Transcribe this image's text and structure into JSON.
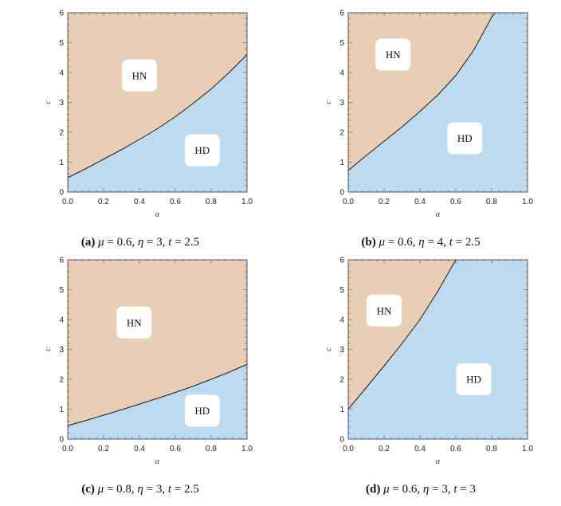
{
  "chart_data": [
    {
      "type": "area",
      "panel_letter": "(a)",
      "caption": {
        "mu": "0.6",
        "eta": "3",
        "t": "2.5"
      },
      "xlabel": "α",
      "ylabel": "c",
      "xlim": [
        0,
        1
      ],
      "ylim": [
        0,
        6
      ],
      "xticks": [
        "0.0",
        "0.2",
        "0.4",
        "0.6",
        "0.8",
        "1.0"
      ],
      "yticks": [
        "0",
        "1",
        "2",
        "3",
        "4",
        "5",
        "6"
      ],
      "boundary": {
        "x": [
          0,
          0.1,
          0.2,
          0.3,
          0.4,
          0.5,
          0.6,
          0.7,
          0.8,
          0.9,
          1.0
        ],
        "y": [
          0.48,
          0.78,
          1.1,
          1.42,
          1.76,
          2.12,
          2.52,
          2.97,
          3.45,
          4.0,
          4.6
        ]
      },
      "regions": [
        {
          "name": "HN",
          "label_x": 0.4,
          "label_y": 3.9
        },
        {
          "name": "HD",
          "label_x": 0.75,
          "label_y": 1.4
        }
      ],
      "colors": {
        "upper": "#e8ceb6",
        "lower": "#bcdaf0",
        "line": "#1a1a1a"
      }
    },
    {
      "type": "area",
      "panel_letter": "(b)",
      "caption": {
        "mu": "0.6",
        "eta": "4",
        "t": "2.5"
      },
      "xlabel": "α",
      "ylabel": "c",
      "xlim": [
        0,
        1
      ],
      "ylim": [
        0,
        6
      ],
      "xticks": [
        "0.0",
        "0.2",
        "0.4",
        "0.6",
        "0.8",
        "1.0"
      ],
      "yticks": [
        "0",
        "1",
        "2",
        "3",
        "4",
        "5",
        "6"
      ],
      "boundary": {
        "x": [
          0,
          0.1,
          0.2,
          0.3,
          0.4,
          0.5,
          0.6,
          0.7,
          0.8,
          0.82
        ],
        "y": [
          0.72,
          1.22,
          1.7,
          2.18,
          2.7,
          3.25,
          3.9,
          4.75,
          5.85,
          6.0
        ]
      },
      "regions": [
        {
          "name": "HN",
          "label_x": 0.25,
          "label_y": 4.6
        },
        {
          "name": "HD",
          "label_x": 0.65,
          "label_y": 1.8
        }
      ],
      "colors": {
        "upper": "#e8ceb6",
        "lower": "#bcdaf0",
        "line": "#1a1a1a"
      }
    },
    {
      "type": "area",
      "panel_letter": "(c)",
      "caption": {
        "mu": "0.8",
        "eta": "3",
        "t": "2.5"
      },
      "xlabel": "α",
      "ylabel": "c",
      "xlim": [
        0,
        1
      ],
      "ylim": [
        0,
        6
      ],
      "xticks": [
        "0.0",
        "0.2",
        "0.4",
        "0.6",
        "0.8",
        "1.0"
      ],
      "yticks": [
        "0",
        "1",
        "2",
        "3",
        "4",
        "5",
        "6"
      ],
      "boundary": {
        "x": [
          0,
          0.1,
          0.2,
          0.3,
          0.4,
          0.5,
          0.6,
          0.7,
          0.8,
          0.9,
          1.0
        ],
        "y": [
          0.45,
          0.62,
          0.8,
          0.98,
          1.17,
          1.36,
          1.56,
          1.77,
          2.0,
          2.24,
          2.5
        ]
      },
      "regions": [
        {
          "name": "HN",
          "label_x": 0.37,
          "label_y": 3.9
        },
        {
          "name": "HD",
          "label_x": 0.75,
          "label_y": 0.95
        }
      ],
      "colors": {
        "upper": "#e8ceb6",
        "lower": "#bcdaf0",
        "line": "#1a1a1a"
      }
    },
    {
      "type": "area",
      "panel_letter": "(d)",
      "caption": {
        "mu": "0.6",
        "eta": "3",
        "t": "3"
      },
      "xlabel": "α",
      "ylabel": "c",
      "xlim": [
        0,
        1
      ],
      "ylim": [
        0,
        6
      ],
      "xticks": [
        "0.0",
        "0.2",
        "0.4",
        "0.6",
        "0.8",
        "1.0"
      ],
      "yticks": [
        "0",
        "1",
        "2",
        "3",
        "4",
        "5",
        "6"
      ],
      "boundary": {
        "x": [
          0,
          0.1,
          0.2,
          0.3,
          0.4,
          0.5,
          0.6
        ],
        "y": [
          1.0,
          1.72,
          2.45,
          3.2,
          4.0,
          4.95,
          6.0
        ]
      },
      "regions": [
        {
          "name": "HN",
          "label_x": 0.2,
          "label_y": 4.3
        },
        {
          "name": "HD",
          "label_x": 0.7,
          "label_y": 2.0
        }
      ],
      "colors": {
        "upper": "#e8ceb6",
        "lower": "#bcdaf0",
        "line": "#1a1a1a"
      }
    }
  ]
}
